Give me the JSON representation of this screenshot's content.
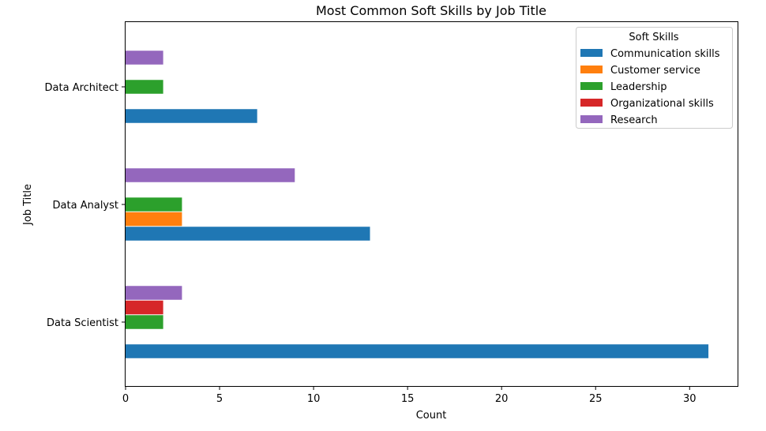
{
  "chart_data": {
    "type": "bar",
    "orientation": "horizontal",
    "title": "Most Common Soft Skills by Job Title",
    "xlabel": "Count",
    "ylabel": "Job Title",
    "categories": [
      "Data Scientist",
      "Data Analyst",
      "Data Architect"
    ],
    "series": [
      {
        "name": "Communication skills",
        "color": "#1f77b4",
        "values": [
          31,
          13,
          7
        ]
      },
      {
        "name": "Customer service",
        "color": "#ff7f0e",
        "values": [
          0,
          3,
          0
        ]
      },
      {
        "name": "Leadership",
        "color": "#2ca02c",
        "values": [
          2,
          3,
          2
        ]
      },
      {
        "name": "Organizational skills",
        "color": "#d62728",
        "values": [
          2,
          0,
          0
        ]
      },
      {
        "name": "Research",
        "color": "#9467bd",
        "values": [
          3,
          9,
          2
        ]
      }
    ],
    "xlim": [
      0,
      32.55
    ],
    "xticks": [
      0,
      5,
      10,
      15,
      20,
      25,
      30
    ],
    "grid": false,
    "legend": {
      "title": "Soft Skills",
      "placement": "top-right"
    }
  }
}
